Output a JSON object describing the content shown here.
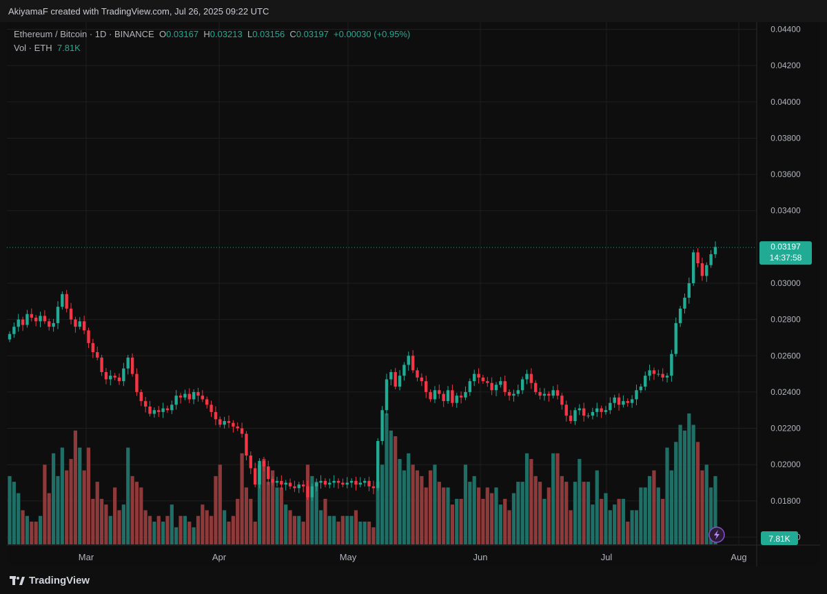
{
  "header": {
    "caption": "AkiyamaF created with TradingView.com, Jul 26, 2025 09:22 UTC"
  },
  "legend": {
    "symbol": "Ethereum / Bitcoin · 1D · BINANCE",
    "o_label": "O",
    "o_value": "0.03167",
    "h_label": "H",
    "h_value": "0.03213",
    "l_label": "L",
    "l_value": "0.03156",
    "c_label": "C",
    "c_value": "0.03197",
    "change": "+0.00030 (+0.95%)",
    "vol_label": "Vol · ETH",
    "vol_value": "7.81K"
  },
  "price_badge": {
    "price": "0.03197",
    "countdown": "14:37:58"
  },
  "volume_badge": "7.81K",
  "footer": {
    "brand": "TradingView"
  },
  "colors": {
    "up": "#22ab94",
    "down": "#f23645",
    "vol_up": "#1f6f66",
    "vol_down": "#8f3a3a",
    "grid": "#1f1f1f",
    "background": "#0e0e0e"
  },
  "chart_data": {
    "type": "candlestick",
    "y_axis": {
      "min": 0.0156,
      "max": 0.0444,
      "ticks": [
        "0.04400",
        "0.04200",
        "0.04000",
        "0.03800",
        "0.03600",
        "0.03400",
        "0.03000",
        "0.02800",
        "0.02600",
        "0.02400",
        "0.02200",
        "0.02000",
        "0.01800",
        "0.01600"
      ]
    },
    "x_axis_labels": [
      "Mar",
      "Apr",
      "May",
      "Jun",
      "Jul",
      "Aug"
    ],
    "last_price": 0.03197,
    "close": [
      0.0272,
      0.0276,
      0.028,
      0.0277,
      0.0283,
      0.0281,
      0.0279,
      0.0282,
      0.0279,
      0.0276,
      0.0278,
      0.0287,
      0.0294,
      0.0286,
      0.028,
      0.0276,
      0.0279,
      0.0274,
      0.0267,
      0.0262,
      0.0259,
      0.0251,
      0.0247,
      0.0249,
      0.0248,
      0.0246,
      0.0253,
      0.0259,
      0.025,
      0.024,
      0.0235,
      0.0232,
      0.0228,
      0.023,
      0.0229,
      0.0231,
      0.023,
      0.0233,
      0.0238,
      0.0237,
      0.0239,
      0.0236,
      0.024,
      0.0238,
      0.0236,
      0.0233,
      0.0229,
      0.0225,
      0.0222,
      0.0224,
      0.0223,
      0.0221,
      0.022,
      0.0217,
      0.0205,
      0.0198,
      0.0189,
      0.0202,
      0.0199,
      0.0192,
      0.019,
      0.0191,
      0.0189,
      0.019,
      0.0188,
      0.0187,
      0.0189,
      0.0188,
      0.0182,
      0.0188,
      0.019,
      0.0191,
      0.0189,
      0.019,
      0.0191,
      0.019,
      0.0189,
      0.019,
      0.0191,
      0.0189,
      0.019,
      0.0191,
      0.0188,
      0.0187,
      0.0213,
      0.023,
      0.0247,
      0.0251,
      0.0243,
      0.0249,
      0.0255,
      0.026,
      0.0252,
      0.0248,
      0.0246,
      0.024,
      0.0236,
      0.0241,
      0.0239,
      0.0235,
      0.0241,
      0.0234,
      0.0238,
      0.0237,
      0.024,
      0.0246,
      0.025,
      0.0248,
      0.0246,
      0.0245,
      0.0241,
      0.0244,
      0.0246,
      0.024,
      0.0238,
      0.0239,
      0.0241,
      0.0247,
      0.025,
      0.0245,
      0.024,
      0.0238,
      0.0239,
      0.0238,
      0.0241,
      0.0238,
      0.0233,
      0.0227,
      0.0224,
      0.023,
      0.0231,
      0.0227,
      0.0227,
      0.0229,
      0.0231,
      0.0229,
      0.023,
      0.0234,
      0.0237,
      0.0233,
      0.0235,
      0.0234,
      0.0236,
      0.0241,
      0.0243,
      0.0249,
      0.0252,
      0.025,
      0.025,
      0.0248,
      0.0249,
      0.0261,
      0.0278,
      0.0286,
      0.0292,
      0.03,
      0.0317,
      0.0311,
      0.0304,
      0.031,
      0.0316,
      0.032
    ],
    "volume": [
      12,
      11,
      9,
      6,
      5,
      4,
      4,
      5,
      14,
      9,
      16,
      12,
      17,
      13,
      15,
      20,
      17,
      13,
      17,
      8,
      11,
      8,
      7,
      5,
      10,
      6,
      7,
      17,
      12,
      11,
      10,
      6,
      5,
      4,
      5,
      4,
      5,
      7,
      3,
      5,
      5,
      4,
      3,
      5,
      7,
      6,
      5,
      12,
      14,
      6,
      4,
      5,
      8,
      16,
      10,
      8,
      4,
      14,
      15,
      11,
      13,
      10,
      10,
      7,
      6,
      5,
      5,
      4,
      14,
      12,
      11,
      6,
      8,
      5,
      5,
      4,
      5,
      5,
      5,
      6,
      4,
      4,
      4,
      3,
      11,
      14,
      23,
      20,
      19,
      15,
      13,
      16,
      14,
      13,
      12,
      10,
      13,
      14,
      11,
      10,
      10,
      7,
      8,
      8,
      14,
      11,
      12,
      10,
      8,
      10,
      9,
      10,
      7,
      8,
      6,
      9,
      11,
      11,
      16,
      15,
      12,
      11,
      8,
      10,
      16,
      16,
      12,
      11,
      6,
      11,
      15,
      11,
      11,
      7,
      13,
      8,
      9,
      6,
      7,
      8,
      8,
      4,
      6,
      6,
      10,
      10,
      12,
      13,
      10,
      8,
      17,
      13,
      18,
      21,
      20,
      23,
      21,
      18,
      13,
      14,
      10,
      12
    ],
    "volume_badge": "7.81K"
  }
}
